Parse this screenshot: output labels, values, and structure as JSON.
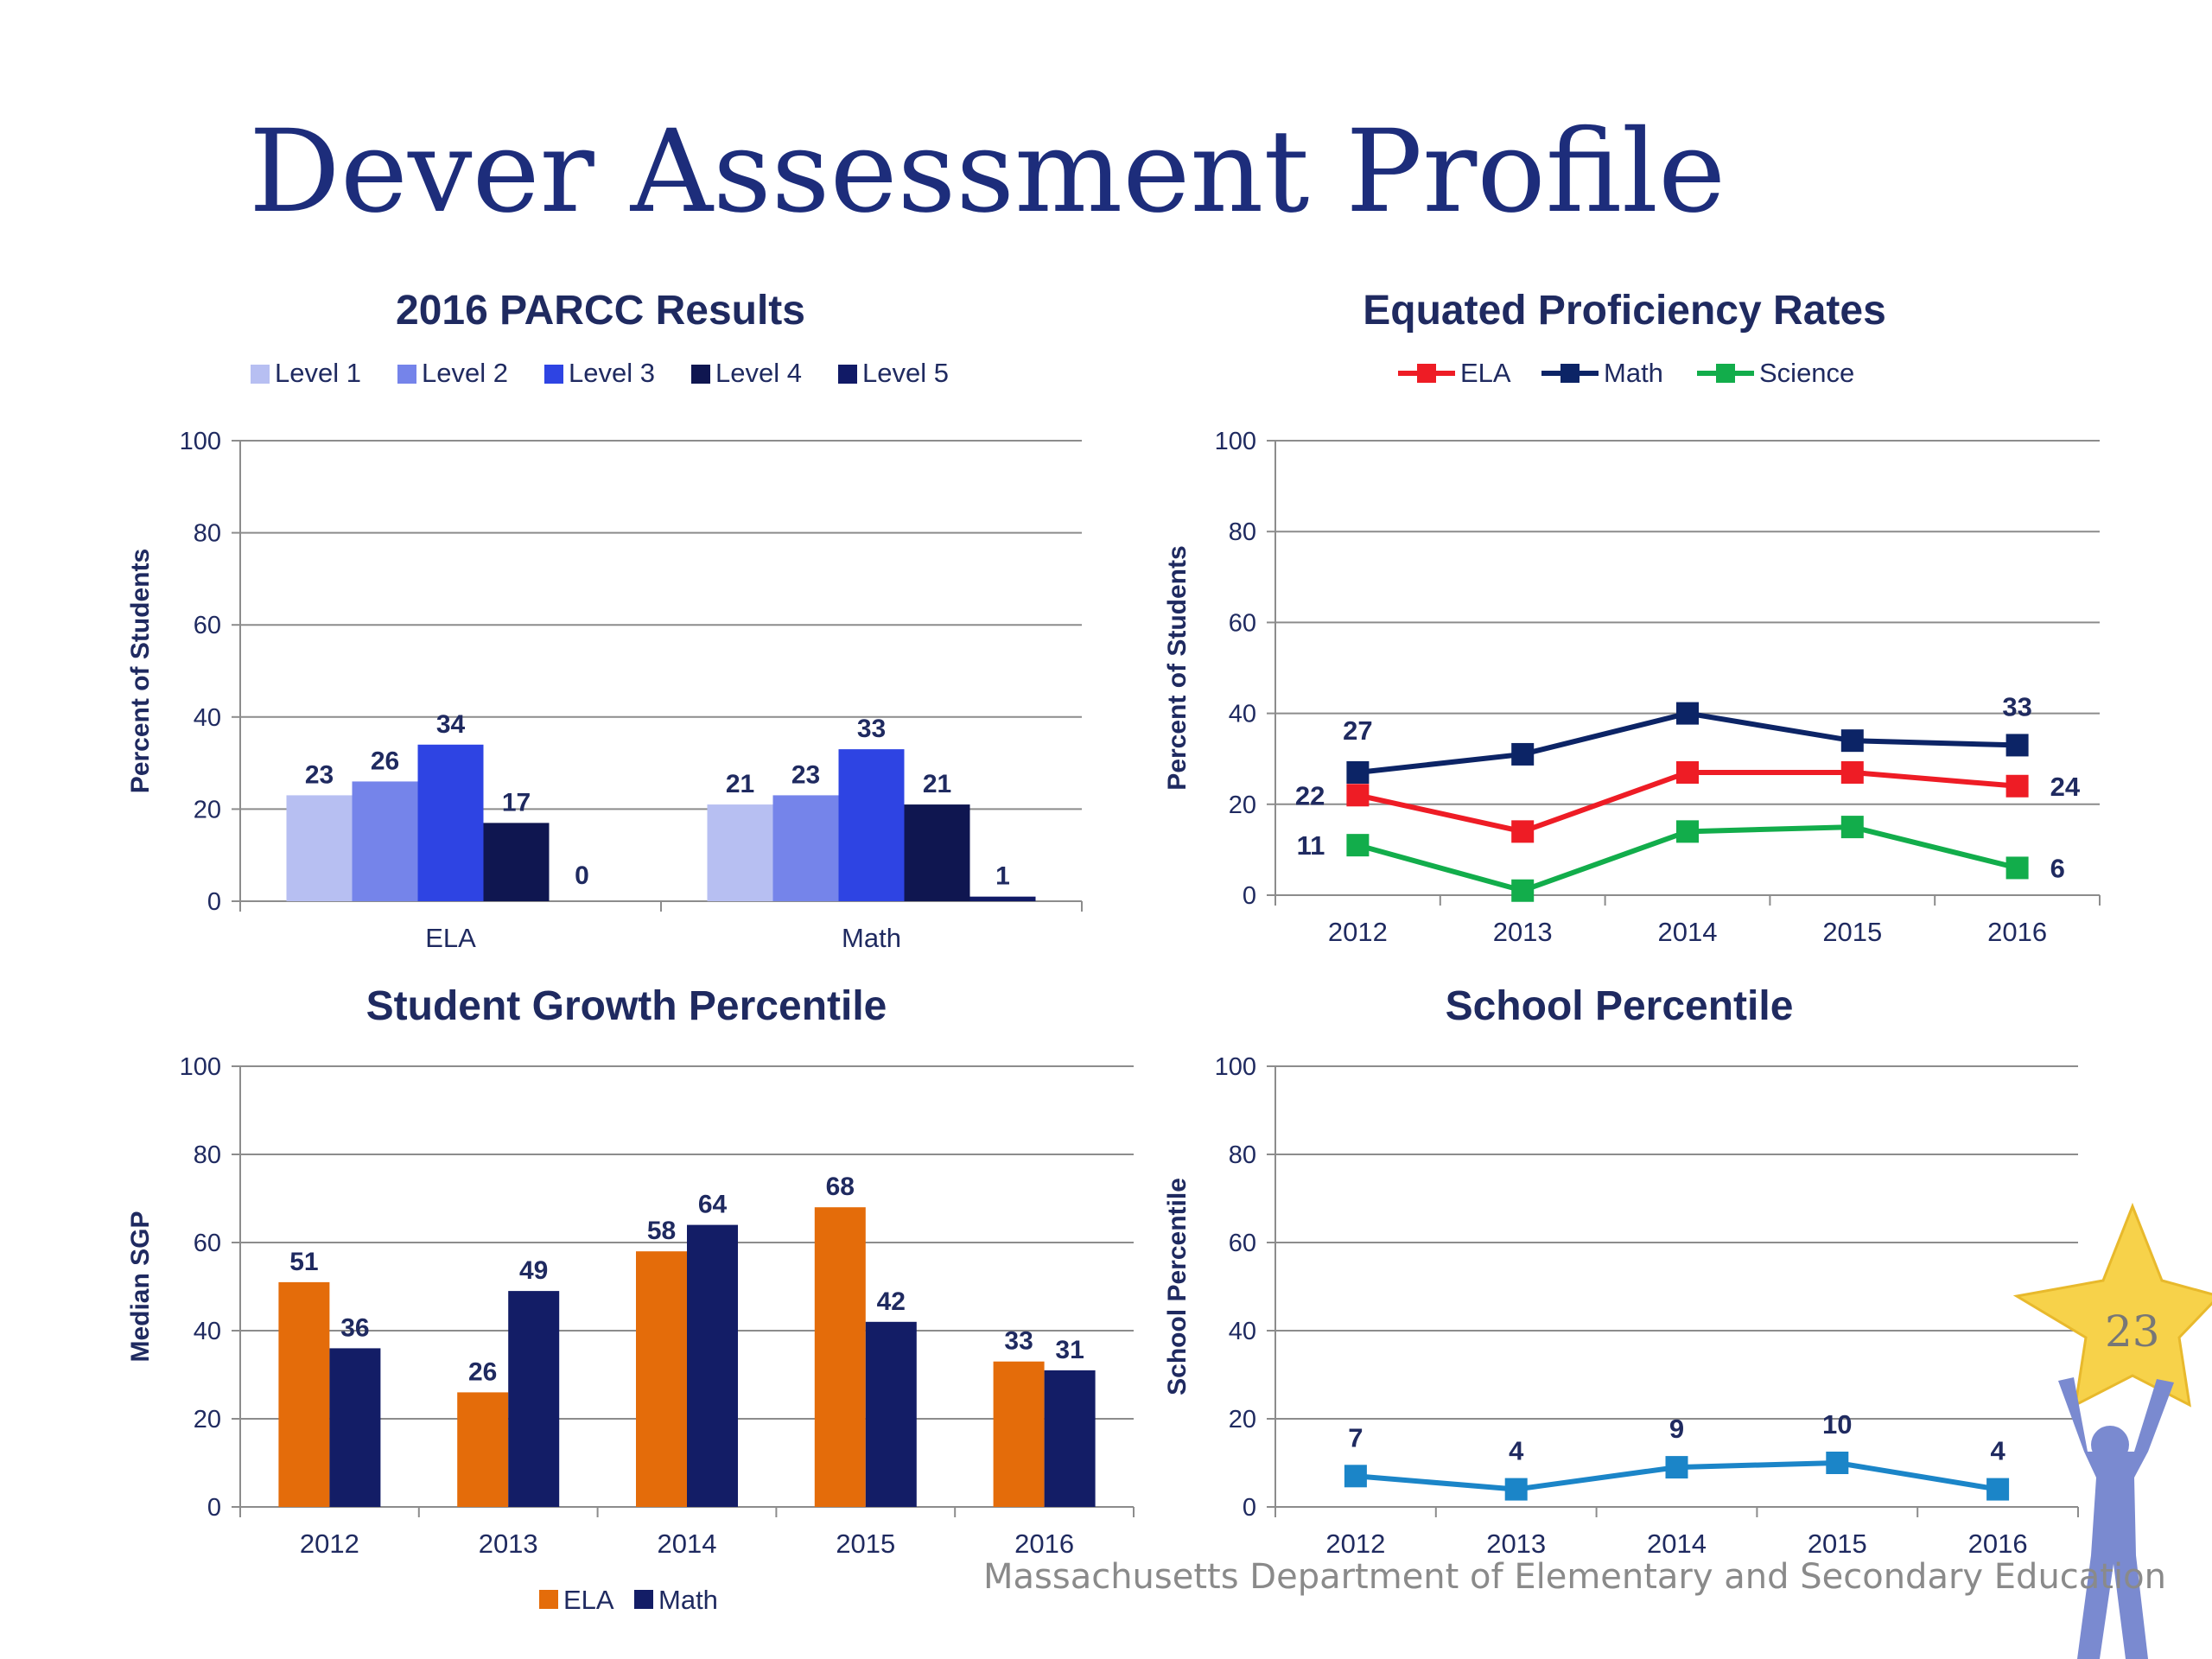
{
  "slide": {
    "title": "Dever Assessment Profile",
    "footer": "Massachusetts Department of Elementary and Secondary Education",
    "page_number": "23"
  },
  "colors": {
    "title": "#1d2d7b",
    "axis_text": "#1f2a60",
    "grid": "#8c8c8c",
    "level1": "#b7bff2",
    "level2": "#7584ea",
    "level3": "#2e44e3",
    "level4": "#0f1650",
    "level5": "#111a66",
    "ela_line": "#ee1c25",
    "math_line": "#0c2466",
    "science_line": "#12ad4b",
    "sgp_ela": "#e46c0a",
    "sgp_math": "#131d66",
    "percentile_line": "#1b85c8",
    "star": "#f7d24a",
    "figure": "#7a8ad0"
  },
  "chart_data": [
    {
      "id": "parcc",
      "type": "bar",
      "title": "2016 PARCC Results",
      "ylabel": "Percent of Students",
      "xlabel": "",
      "categories": [
        "ELA",
        "Math"
      ],
      "series": [
        {
          "name": "Level 1",
          "values": [
            23,
            21
          ],
          "color": "#b7bff2"
        },
        {
          "name": "Level 2",
          "values": [
            26,
            23
          ],
          "color": "#7584ea"
        },
        {
          "name": "Level 3",
          "values": [
            34,
            33
          ],
          "color": "#2e44e3"
        },
        {
          "name": "Level 4",
          "values": [
            17,
            21
          ],
          "color": "#0f1650"
        },
        {
          "name": "Level 5",
          "values": [
            0,
            1
          ],
          "color": "#111a66"
        }
      ],
      "ylim": [
        0,
        100
      ],
      "yticks": [
        0,
        20,
        40,
        60,
        80,
        100
      ],
      "grid": true,
      "legend": "top"
    },
    {
      "id": "proficiency",
      "type": "line",
      "title": "Equated Proficiency  Rates",
      "ylabel": "Percent of Students",
      "xlabel": "",
      "x": [
        "2012",
        "2013",
        "2014",
        "2015",
        "2016"
      ],
      "series": [
        {
          "name": "ELA",
          "values": [
            22,
            14,
            27,
            27,
            24
          ],
          "color": "#ee1c25",
          "labels": [
            "22",
            null,
            null,
            null,
            "24"
          ]
        },
        {
          "name": "Math",
          "values": [
            27,
            31,
            40,
            34,
            33
          ],
          "color": "#0c2466",
          "labels": [
            "27",
            null,
            null,
            null,
            "33"
          ]
        },
        {
          "name": "Science",
          "values": [
            11,
            1,
            14,
            15,
            6
          ],
          "color": "#12ad4b",
          "labels": [
            "11",
            null,
            null,
            null,
            "6"
          ]
        }
      ],
      "ylim": [
        0,
        100
      ],
      "yticks": [
        0,
        20,
        40,
        60,
        80,
        100
      ],
      "grid": true,
      "legend": "top"
    },
    {
      "id": "sgp",
      "type": "bar",
      "title": "Student Growth Percentile",
      "ylabel": "Median SGP",
      "xlabel": "",
      "categories": [
        "2012",
        "2013",
        "2014",
        "2015",
        "2016"
      ],
      "series": [
        {
          "name": "ELA",
          "values": [
            51,
            26,
            58,
            68,
            33
          ],
          "color": "#e46c0a"
        },
        {
          "name": "Math",
          "values": [
            36,
            49,
            64,
            42,
            31
          ],
          "color": "#131d66"
        }
      ],
      "ylim": [
        0,
        100
      ],
      "yticks": [
        0,
        20,
        40,
        60,
        80,
        100
      ],
      "grid": true,
      "legend": "bottom"
    },
    {
      "id": "percentile",
      "type": "line",
      "title": "School Percentile",
      "ylabel": "School Percentile",
      "xlabel": "",
      "x": [
        "2012",
        "2013",
        "2014",
        "2015",
        "2016"
      ],
      "series": [
        {
          "name": "",
          "values": [
            7,
            4,
            9,
            10,
            4
          ],
          "color": "#1b85c8",
          "labels": [
            "7",
            "4",
            "9",
            "10",
            "4"
          ]
        }
      ],
      "ylim": [
        0,
        100
      ],
      "yticks": [
        0,
        20,
        40,
        60,
        80,
        100
      ],
      "grid": true,
      "legend": "none"
    }
  ]
}
